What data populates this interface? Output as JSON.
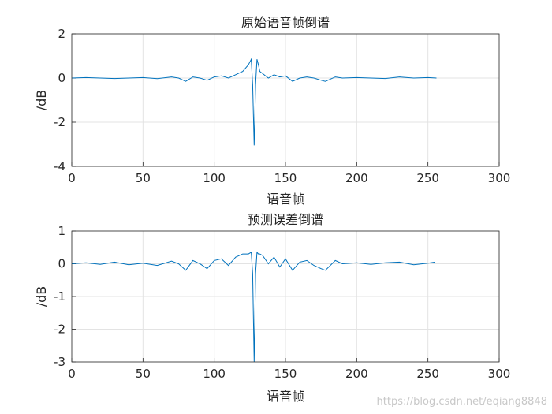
{
  "chart_data": [
    {
      "type": "line",
      "title": "原始语音帧倒谱",
      "xlabel": "语音帧",
      "ylabel": "/dB",
      "xlim": [
        0,
        300
      ],
      "ylim": [
        -4,
        2
      ],
      "xticks": [
        0,
        50,
        100,
        150,
        200,
        250,
        300
      ],
      "yticks": [
        2,
        0,
        -2,
        -4
      ],
      "grid": true,
      "color": "#0072BD",
      "x": [
        0,
        10,
        20,
        30,
        40,
        50,
        60,
        70,
        75,
        80,
        85,
        90,
        95,
        100,
        105,
        110,
        115,
        120,
        124,
        126,
        127,
        128,
        129,
        130,
        131,
        132,
        134,
        138,
        142,
        146,
        150,
        155,
        160,
        165,
        170,
        175,
        178,
        185,
        190,
        200,
        210,
        220,
        230,
        240,
        250,
        256
      ],
      "y": [
        0.0,
        0.02,
        0.0,
        -0.02,
        0.0,
        0.02,
        -0.03,
        0.05,
        0.0,
        -0.15,
        0.05,
        0.0,
        -0.1,
        0.05,
        0.1,
        0.0,
        0.15,
        0.3,
        0.6,
        0.85,
        -0.3,
        -3.05,
        -0.3,
        0.85,
        0.6,
        0.3,
        0.2,
        0.0,
        0.15,
        0.05,
        0.1,
        -0.15,
        0.0,
        0.05,
        0.0,
        -0.1,
        -0.15,
        0.05,
        0.0,
        0.02,
        0.0,
        -0.02,
        0.05,
        0.0,
        0.02,
        0.0
      ]
    },
    {
      "type": "line",
      "title": "预测误差倒谱",
      "xlabel": "语音帧",
      "ylabel": "/dB",
      "xlim": [
        0,
        300
      ],
      "ylim": [
        -3,
        1
      ],
      "xticks": [
        0,
        50,
        100,
        150,
        200,
        250,
        300
      ],
      "yticks": [
        1,
        0,
        -1,
        -2,
        -3
      ],
      "grid": true,
      "color": "#0072BD",
      "x": [
        0,
        10,
        20,
        30,
        40,
        50,
        60,
        70,
        75,
        80,
        85,
        90,
        95,
        100,
        105,
        110,
        115,
        120,
        124,
        126,
        127,
        128,
        129,
        130,
        131,
        132,
        134,
        138,
        142,
        146,
        150,
        155,
        160,
        165,
        170,
        175,
        178,
        185,
        190,
        200,
        210,
        220,
        230,
        240,
        250,
        255
      ],
      "y": [
        0.0,
        0.03,
        -0.02,
        0.05,
        -0.03,
        0.02,
        -0.05,
        0.08,
        0.0,
        -0.2,
        0.1,
        0.0,
        -0.15,
        0.1,
        0.15,
        -0.05,
        0.2,
        0.3,
        0.3,
        0.35,
        -0.3,
        -3.0,
        -0.3,
        0.35,
        0.3,
        0.3,
        0.25,
        0.0,
        0.2,
        -0.1,
        0.15,
        -0.2,
        0.05,
        0.1,
        -0.05,
        -0.15,
        -0.2,
        0.1,
        0.0,
        0.03,
        -0.02,
        0.03,
        0.05,
        -0.03,
        0.02,
        0.05
      ]
    }
  ],
  "watermark": "https://blog.csdn.net/eqiang8848"
}
